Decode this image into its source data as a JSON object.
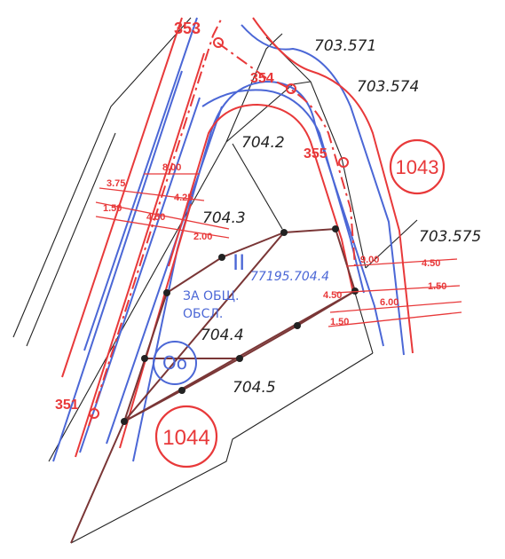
{
  "colors": {
    "regulation_red": "#e8393a",
    "street_blue": "#4b67d6",
    "parcel_brown": "#7a3636",
    "cadastre_black": "#222222"
  },
  "cadastral_ids": {
    "p703_571": "703.571",
    "p703_574": "703.574",
    "p703_575": "703.575",
    "p704_2": "704.2",
    "p704_3": "704.3",
    "p704_4": "704.4",
    "p704_5": "704.5"
  },
  "points": {
    "p353": "353",
    "p354": "354",
    "p355": "355",
    "p351": "351"
  },
  "blocks": {
    "b1043": "1043",
    "b1044": "1044"
  },
  "blue_labels": {
    "roman": "II",
    "plot_id": "77195.704.4",
    "use_line1": "ЗА ОБЩ.",
    "use_line2": "ОБСЛ.",
    "zone": "Оо"
  },
  "dimensions": {
    "left": {
      "d8_00": "8.00",
      "d3_75": "3.75",
      "d4_25": "4.25",
      "d1_50": "1.50",
      "d4_50": "4.50",
      "d2_00": "2.00"
    },
    "right": {
      "d9_00": "9.00",
      "d4_50a": "4.50",
      "d4_50b": "4.50",
      "d6_00": "6.00",
      "d1_50a": "1.50",
      "d1_50b": "1.50"
    }
  }
}
